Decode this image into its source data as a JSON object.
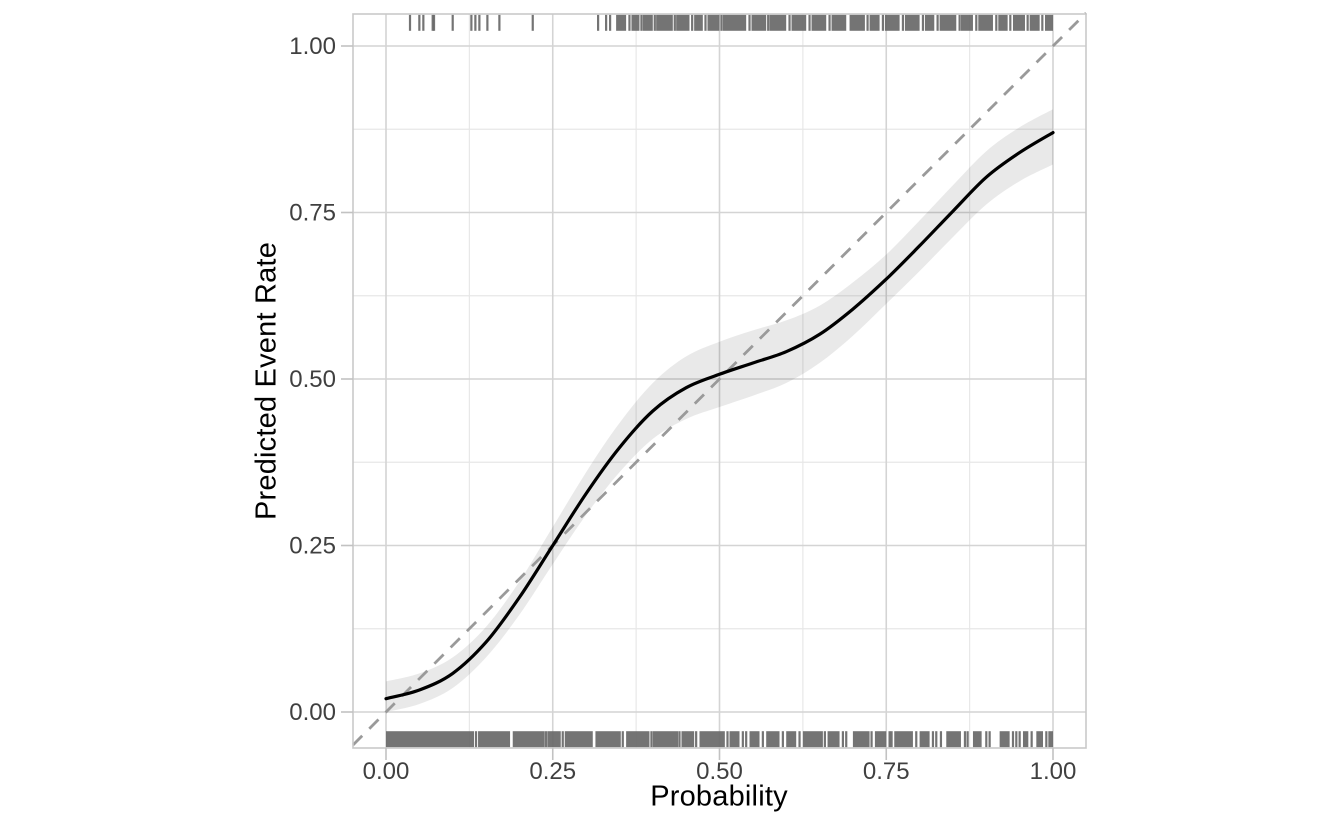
{
  "figure": {
    "background": "#ffffff",
    "colors": {
      "curve": "#000000",
      "reference_line": "#9a9a9a",
      "confidence_band": "rgba(0,0,0,0.085)",
      "rug": "#686868",
      "grid_major": "#d4d4d4",
      "grid_minor": "#e7e7e7",
      "panel_border": "#c9c9c9",
      "tick_mark": "#c2c2c2",
      "axis_text": "#404040",
      "axis_title": "#000000"
    }
  },
  "chart_data": {
    "type": "line",
    "title": "",
    "xlabel": "Probability",
    "ylabel": "Predicted Event Rate",
    "xlim": [
      -0.0495,
      1.0495
    ],
    "ylim": [
      -0.0495,
      1.0495
    ],
    "grid": true,
    "legend": "none",
    "major_ticks": [
      0,
      0.25,
      0.5,
      0.75,
      1.0
    ],
    "tick_labels": [
      "0.00",
      "0.25",
      "0.50",
      "0.75",
      "1.00"
    ],
    "minor_ticks": [
      0.125,
      0.375,
      0.625,
      0.875
    ],
    "reference_line": {
      "style": "dashed",
      "slope": 1,
      "intercept": 0
    },
    "calibration_curve": {
      "x": [
        0.0,
        0.05,
        0.1,
        0.15,
        0.2,
        0.25,
        0.3,
        0.35,
        0.4,
        0.45,
        0.5,
        0.55,
        0.6,
        0.65,
        0.7,
        0.75,
        0.8,
        0.85,
        0.9,
        0.95,
        1.0
      ],
      "y": [
        0.02,
        0.033,
        0.058,
        0.105,
        0.172,
        0.25,
        0.328,
        0.397,
        0.452,
        0.487,
        0.507,
        0.524,
        0.541,
        0.567,
        0.605,
        0.65,
        0.7,
        0.752,
        0.803,
        0.84,
        0.87
      ]
    },
    "confidence_band": {
      "x": [
        0.0,
        0.05,
        0.1,
        0.15,
        0.2,
        0.25,
        0.3,
        0.35,
        0.4,
        0.45,
        0.5,
        0.55,
        0.6,
        0.65,
        0.7,
        0.75,
        0.8,
        0.85,
        0.9,
        0.95,
        1.0
      ],
      "lower": [
        0.0,
        0.012,
        0.036,
        0.082,
        0.146,
        0.222,
        0.296,
        0.36,
        0.41,
        0.44,
        0.458,
        0.475,
        0.494,
        0.524,
        0.565,
        0.613,
        0.662,
        0.713,
        0.762,
        0.797,
        0.822
      ],
      "upper": [
        0.046,
        0.058,
        0.082,
        0.128,
        0.196,
        0.278,
        0.36,
        0.434,
        0.494,
        0.534,
        0.556,
        0.573,
        0.588,
        0.61,
        0.645,
        0.687,
        0.738,
        0.791,
        0.842,
        0.878,
        0.905
      ]
    },
    "rug_top": {
      "ticks": [
        0.036,
        0.05,
        0.056,
        0.07,
        0.072,
        0.1,
        0.128,
        0.134,
        0.14,
        0.152,
        0.17,
        0.22,
        0.318,
        0.33,
        0.336,
        0.365,
        0.383,
        0.403,
        0.433,
        0.459,
        0.479,
        0.503,
        0.545,
        0.573,
        0.605,
        0.635,
        0.665,
        0.722,
        0.745,
        0.775,
        0.805,
        0.827,
        0.86,
        0.885,
        0.915,
        0.936,
        0.962,
        0.984
      ],
      "ranges": [
        [
          0.345,
          0.36
        ],
        [
          0.368,
          0.38
        ],
        [
          0.385,
          0.4
        ],
        [
          0.405,
          0.43
        ],
        [
          0.435,
          0.455
        ],
        [
          0.462,
          0.475
        ],
        [
          0.482,
          0.5
        ],
        [
          0.505,
          0.54
        ],
        [
          0.548,
          0.57
        ],
        [
          0.575,
          0.6
        ],
        [
          0.608,
          0.63
        ],
        [
          0.638,
          0.66
        ],
        [
          0.668,
          0.69
        ],
        [
          0.695,
          0.718
        ],
        [
          0.725,
          0.74
        ],
        [
          0.748,
          0.77
        ],
        [
          0.778,
          0.8
        ],
        [
          0.808,
          0.822
        ],
        [
          0.83,
          0.855
        ],
        [
          0.862,
          0.88
        ],
        [
          0.888,
          0.91
        ],
        [
          0.918,
          0.932
        ],
        [
          0.94,
          0.958
        ],
        [
          0.965,
          0.98
        ],
        [
          0.988,
          1.0
        ]
      ]
    },
    "rug_bottom": {
      "ticks": [
        0.135,
        0.24,
        0.265,
        0.355,
        0.398,
        0.44,
        0.465,
        0.512,
        0.535,
        0.54,
        0.565,
        0.595,
        0.62,
        0.658,
        0.685,
        0.69,
        0.728,
        0.755,
        0.758,
        0.795,
        0.82,
        0.825,
        0.832,
        0.868,
        0.872,
        0.9,
        0.905,
        0.94,
        0.945,
        0.95,
        0.968,
        0.99
      ],
      "ranges": [
        [
          0.0,
          0.132
        ],
        [
          0.138,
          0.186
        ],
        [
          0.19,
          0.238
        ],
        [
          0.242,
          0.262
        ],
        [
          0.268,
          0.31
        ],
        [
          0.314,
          0.352
        ],
        [
          0.36,
          0.395
        ],
        [
          0.4,
          0.438
        ],
        [
          0.443,
          0.462
        ],
        [
          0.47,
          0.508
        ],
        [
          0.515,
          0.53
        ],
        [
          0.545,
          0.56
        ],
        [
          0.57,
          0.59
        ],
        [
          0.6,
          0.615
        ],
        [
          0.625,
          0.655
        ],
        [
          0.662,
          0.68
        ],
        [
          0.7,
          0.725
        ],
        [
          0.733,
          0.75
        ],
        [
          0.762,
          0.79
        ],
        [
          0.8,
          0.815
        ],
        [
          0.84,
          0.862
        ],
        [
          0.88,
          0.893
        ],
        [
          0.92,
          0.935
        ],
        [
          0.955,
          0.963
        ],
        [
          0.975,
          0.985
        ],
        [
          0.993,
          1.0
        ]
      ]
    }
  }
}
